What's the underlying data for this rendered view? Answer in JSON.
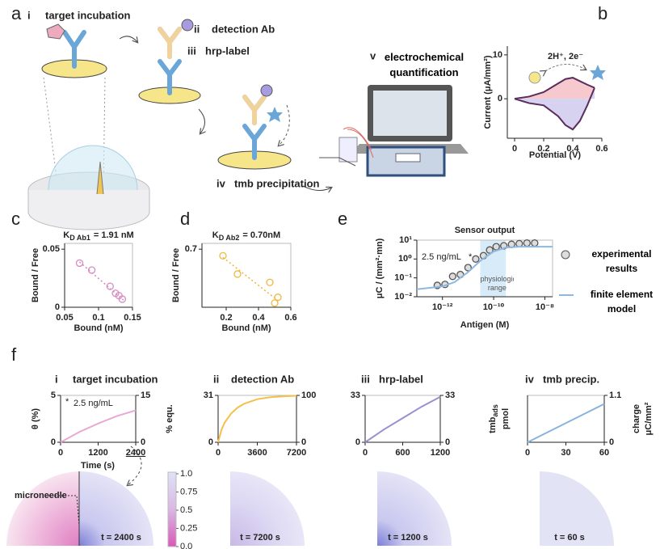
{
  "panel_labels": [
    "a",
    "b",
    "c",
    "d",
    "e",
    "f"
  ],
  "schematic": {
    "steps": [
      {
        "numeral": "i",
        "label": "target incubation"
      },
      {
        "numeral": "ii",
        "label": "detection Ab"
      },
      {
        "numeral": "iii",
        "label": "hrp-label"
      },
      {
        "numeral": "iv",
        "label": "tmb precipitation"
      },
      {
        "numeral": "v",
        "label": "electrochemical quantification"
      }
    ]
  },
  "chart_data": [
    {
      "type": "line",
      "xlabel": "Potential (V)",
      "ylabel": "Current (μA/mm²)",
      "annotation": "2H⁺, 2e⁻",
      "x": [
        0,
        0.1,
        0.2,
        0.3,
        0.35,
        0.4,
        0.45,
        0.5,
        0.55
      ],
      "series": [
        {
          "color": "#5a2d5c",
          "fill": "#f6c9cf",
          "values": [
            0,
            0.5,
            1.5,
            3.5,
            4.5,
            4.8,
            4,
            3.2,
            2.5
          ]
        },
        {
          "color": "#5a2d5c",
          "fill": "#d6d2f0",
          "values": [
            0,
            -1,
            -1.5,
            -4,
            -6,
            -7,
            -5,
            -1.5,
            2.5
          ]
        }
      ],
      "xlim": [
        -0.05,
        0.6
      ],
      "xticks": [
        0,
        0.2,
        0.4,
        0.6
      ],
      "ylim": [
        -9,
        12
      ],
      "yticks": [
        0,
        10
      ]
    },
    {
      "type": "scatter",
      "title": "K",
      "title_sub": "D Ab1",
      "title_rest": "=  1.91 nM",
      "xlabel": "Bound (nM)",
      "ylabel": "Bound / Free",
      "series": [
        {
          "type": "scatter",
          "color": "#d68cc2",
          "x": [
            0.072,
            0.09,
            0.117,
            0.125,
            0.13,
            0.135
          ],
          "values": [
            0.038,
            0.032,
            0.018,
            0.012,
            0.01,
            0.007
          ]
        },
        {
          "type": "line",
          "dash": "dotted",
          "color": "#d68cc2",
          "x": [
            0.072,
            0.137
          ],
          "values": [
            0.039,
            0.006
          ]
        }
      ],
      "xlim": [
        0.05,
        0.15
      ],
      "xticks": [
        0.05,
        0.1,
        0.15
      ],
      "ylim": [
        0,
        0.055
      ],
      "yticks": [
        0,
        0.05
      ]
    },
    {
      "type": "scatter",
      "title": "K",
      "title_sub": "D Ab2",
      "title_rest": "=  0.70nM",
      "xlabel": "Bound (nM)",
      "ylabel": "Bound / Free",
      "series": [
        {
          "type": "scatter",
          "color": "#f0b840",
          "x": [
            0.18,
            0.27,
            0.47,
            0.5,
            0.52
          ],
          "values": [
            0.62,
            0.4,
            0.3,
            0.05,
            0.12
          ]
        },
        {
          "type": "line",
          "dash": "dotted",
          "color": "#f0b840",
          "x": [
            0.18,
            0.52
          ],
          "values": [
            0.6,
            0.08
          ]
        }
      ],
      "xlim": [
        0.05,
        0.6
      ],
      "xticks": [
        0.2,
        0.4,
        0.6
      ],
      "ylim": [
        0,
        0.77
      ],
      "yticks": [
        0.7
      ]
    },
    {
      "type": "scatter",
      "title": "Sensor output",
      "xlabel": "Antigen (M)",
      "ylabel": "μC / (mm²·mn)",
      "xscale": "log",
      "yscale": "log",
      "annotation": "2.5 ng/mL",
      "annotation_marker": "*",
      "band": [
        3e-11,
        3e-10
      ],
      "band_label": "physiological range",
      "band_color": "#d7ebf8",
      "legend": "right",
      "series": [
        {
          "name": "experimental results",
          "type": "scatter",
          "color": "#555555",
          "x": [
            6.3e-13,
            1.26e-12,
            2.5e-12,
            5e-12,
            1e-11,
            2e-11,
            4e-11,
            7e-11,
            1.26e-10,
            2.5e-10,
            5e-10,
            1e-09,
            2e-09,
            4e-09
          ],
          "values": [
            0.04,
            0.045,
            0.12,
            0.15,
            0.35,
            1,
            1.5,
            3,
            4.5,
            5,
            6,
            6.5,
            7,
            7
          ]
        },
        {
          "name": "finite element model",
          "type": "line",
          "color": "#8fb8e0",
          "x": [
            1e-13,
            1e-12,
            3e-12,
            1e-11,
            3e-11,
            1e-10,
            3e-10,
            1e-09,
            1e-08,
            2e-08
          ],
          "values": [
            0.025,
            0.035,
            0.06,
            0.2,
            0.8,
            2.5,
            4,
            4.5,
            4.5,
            4.5
          ]
        }
      ],
      "xlim": [
        1e-13,
        2e-08
      ],
      "xticks": [
        {
          "value": 1e-12,
          "label": "10⁻¹²"
        },
        {
          "value": 1e-10,
          "label": "10⁻¹⁰"
        },
        {
          "value": 1e-08,
          "label": "10⁻⁸"
        }
      ],
      "ylim": [
        0.01,
        10
      ],
      "yticks": [
        {
          "value": 0.01,
          "label": "10⁻²"
        },
        {
          "value": 0.1,
          "label": "10⁻¹"
        },
        {
          "value": 1,
          "label": "10⁰"
        },
        {
          "value": 10,
          "label": "10¹"
        }
      ]
    },
    {
      "type": "line",
      "numeral": "i",
      "title": "target incubation",
      "xlabel": "Time (s)",
      "ylabel": "θ (%)",
      "y2label": "% equ.",
      "annotation": "2.5 ng/mL",
      "annotation_marker": "*",
      "x": [
        0,
        600,
        1200,
        1800,
        2400
      ],
      "series": [
        {
          "color": "#eaa9d0",
          "values": [
            0,
            1.1,
            2,
            2.8,
            3.4
          ]
        }
      ],
      "xlim": [
        0,
        2400
      ],
      "xticks": [
        0,
        1200,
        2400
      ],
      "ylim": [
        0,
        5
      ],
      "yticks": [
        0,
        5
      ],
      "y2lim": [
        0,
        15
      ],
      "y2ticks": [
        0,
        15
      ]
    },
    {
      "type": "line",
      "numeral": "ii",
      "title": "detection Ab",
      "x": [
        0,
        300,
        600,
        1200,
        1800,
        2400,
        3600,
        4800,
        6000,
        7200
      ],
      "series": [
        {
          "color": "#f5c04a",
          "values": [
            0,
            8,
            13,
            19,
            23,
            25.5,
            28.5,
            29.8,
            30.4,
            30.7
          ]
        }
      ],
      "xlim": [
        0,
        7200
      ],
      "xticks": [
        0,
        3600,
        7200
      ],
      "ylim": [
        0,
        31
      ],
      "yticks": [
        0,
        31
      ],
      "y2lim": [
        0,
        100
      ],
      "y2ticks": [
        0,
        100
      ]
    },
    {
      "type": "line",
      "numeral": "iii",
      "title": "hrp-label",
      "x": [
        0,
        300,
        600,
        900,
        1200
      ],
      "series": [
        {
          "color": "#9b8fcf",
          "values": [
            0,
            9,
            17,
            25,
            32
          ]
        }
      ],
      "xlim": [
        0,
        1200
      ],
      "xticks": [
        0,
        600,
        1200
      ],
      "ylim": [
        0,
        33
      ],
      "yticks": [
        0,
        33
      ],
      "y2lim": [
        0,
        33
      ],
      "y2ticks": [
        0,
        33
      ]
    },
    {
      "type": "line",
      "numeral": "iv",
      "title": "tmb precip.",
      "ylabel": "tmb",
      "ylabel_sub": "ads",
      "ylabel_unit": "pmol",
      "y2label": "charge",
      "y2label_unit": "μC/mm²",
      "x": [
        0,
        60
      ],
      "series": [
        {
          "color": "#8ab4e0",
          "axis": "y2",
          "values": [
            0,
            0.9
          ]
        }
      ],
      "xlim": [
        0,
        60
      ],
      "xticks": [
        0,
        30,
        60
      ],
      "y2lim": [
        0,
        1.1
      ],
      "y2ticks": [
        0,
        1.1
      ]
    }
  ],
  "simulation": {
    "time_labels": [
      "t = 2400 s",
      "t = 7200 s",
      "t = 1200 s",
      "t =   60 s"
    ],
    "annotation": "microneedle",
    "colorbar": {
      "lim": [
        0,
        1
      ],
      "ticks": [
        {
          "value": 1,
          "label": "1.0"
        },
        0.75,
        0.5,
        0.25,
        {
          "value": 0,
          "label": "0.0"
        }
      ]
    }
  }
}
